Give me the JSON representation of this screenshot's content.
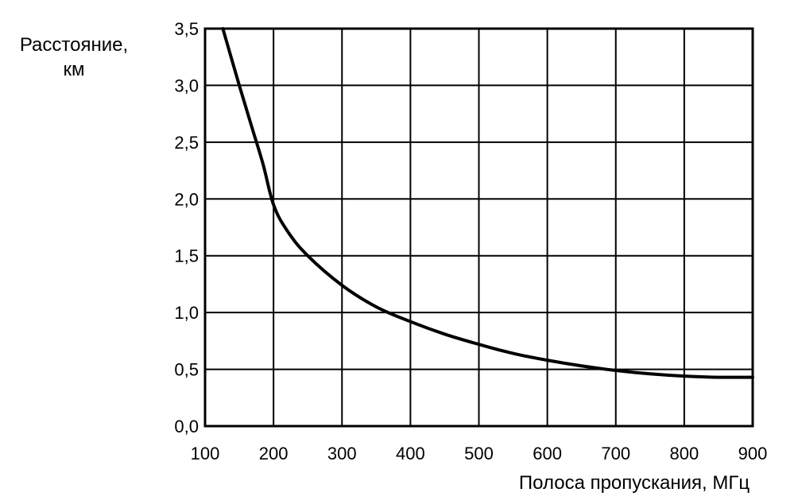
{
  "chart_data": {
    "type": "line",
    "title": "",
    "xlabel": "Полоса пропускания, МГц",
    "ylabel_lines": [
      "Расстояние,",
      "км"
    ],
    "xlim": [
      100,
      900
    ],
    "ylim": [
      0,
      3.5
    ],
    "x_ticks": [
      100,
      200,
      300,
      400,
      500,
      600,
      700,
      800,
      900
    ],
    "x_tick_labels": [
      "100",
      "200",
      "300",
      "400",
      "500",
      "600",
      "700",
      "800",
      "900"
    ],
    "y_ticks": [
      0,
      0.5,
      1.0,
      1.5,
      2.0,
      2.5,
      3.0,
      3.5
    ],
    "y_tick_labels": [
      "0,0",
      "0,5",
      "1,0",
      "1,5",
      "2,0",
      "2,5",
      "3,0",
      "3,5"
    ],
    "grid": true,
    "legend": "none",
    "colors": {
      "line": "#000000",
      "grid": "#000000",
      "background": "#ffffff"
    },
    "series": [
      {
        "x": [
          126,
          150,
          170,
          185,
          200,
          220,
          250,
          300,
          350,
          400,
          450,
          500,
          550,
          600,
          650,
          700,
          750,
          800,
          850,
          900
        ],
        "y": [
          3.5,
          3.0,
          2.6,
          2.3,
          1.95,
          1.72,
          1.5,
          1.24,
          1.05,
          0.92,
          0.81,
          0.72,
          0.64,
          0.58,
          0.53,
          0.49,
          0.46,
          0.44,
          0.43,
          0.43
        ]
      }
    ]
  }
}
